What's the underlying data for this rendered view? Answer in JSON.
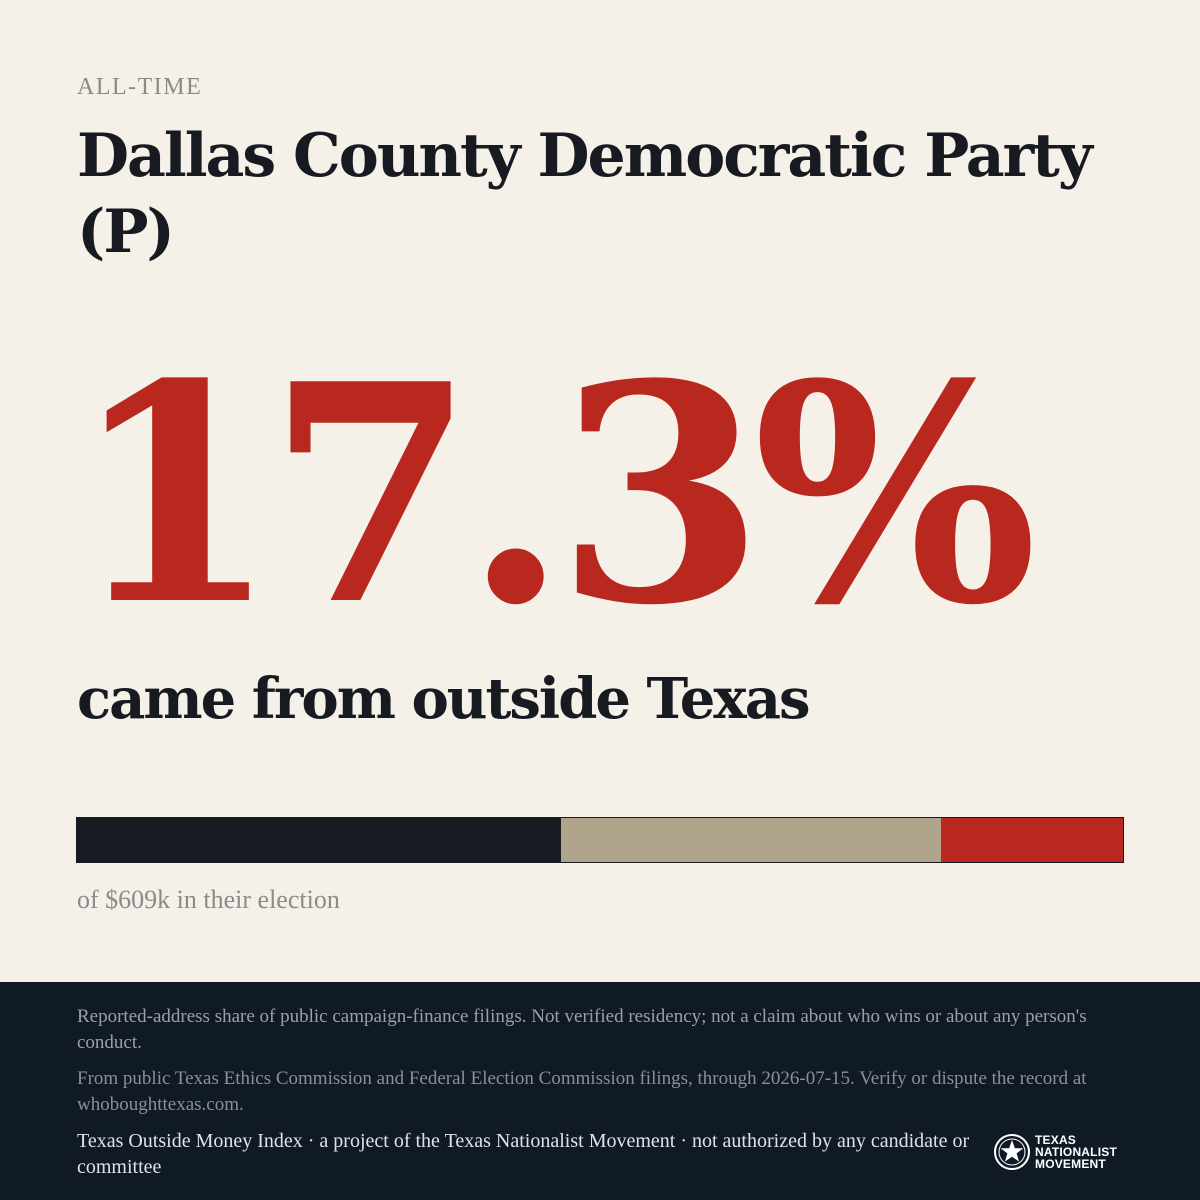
{
  "eyebrow": "ALL-TIME",
  "title": "Dallas County Democratic Party (P)",
  "headline_percent": "17.3%",
  "subheadline": "came from outside Texas",
  "bar": {
    "segments": [
      {
        "fraction": 0.463,
        "color": "#171a20"
      },
      {
        "fraction": 0.363,
        "color": "#b0a48a"
      },
      {
        "fraction": 0.174,
        "color": "#b8281f"
      }
    ]
  },
  "caption": "of $609k in their election",
  "footer": {
    "disclaimer": "Reported-address share of public campaign-finance filings. Not verified residency; not a claim about who wins or about any person's conduct.",
    "source": "From public Texas Ethics Commission and Federal Election Commission filings, through 2026-07-15. Verify or dispute the record at whoboughttexas.com.",
    "attribution": "Texas Outside Money Index · a project of the Texas Nationalist Movement · not authorized by any candidate or committee",
    "logo": {
      "icon": "star-seal-icon",
      "lines": [
        "TEXAS",
        "NATIONALIST",
        "MOVEMENT"
      ]
    }
  },
  "colors": {
    "background": "#f5f0e8",
    "accent": "#b8281f",
    "ink": "#171a20",
    "footer_bg": "#101a26"
  }
}
